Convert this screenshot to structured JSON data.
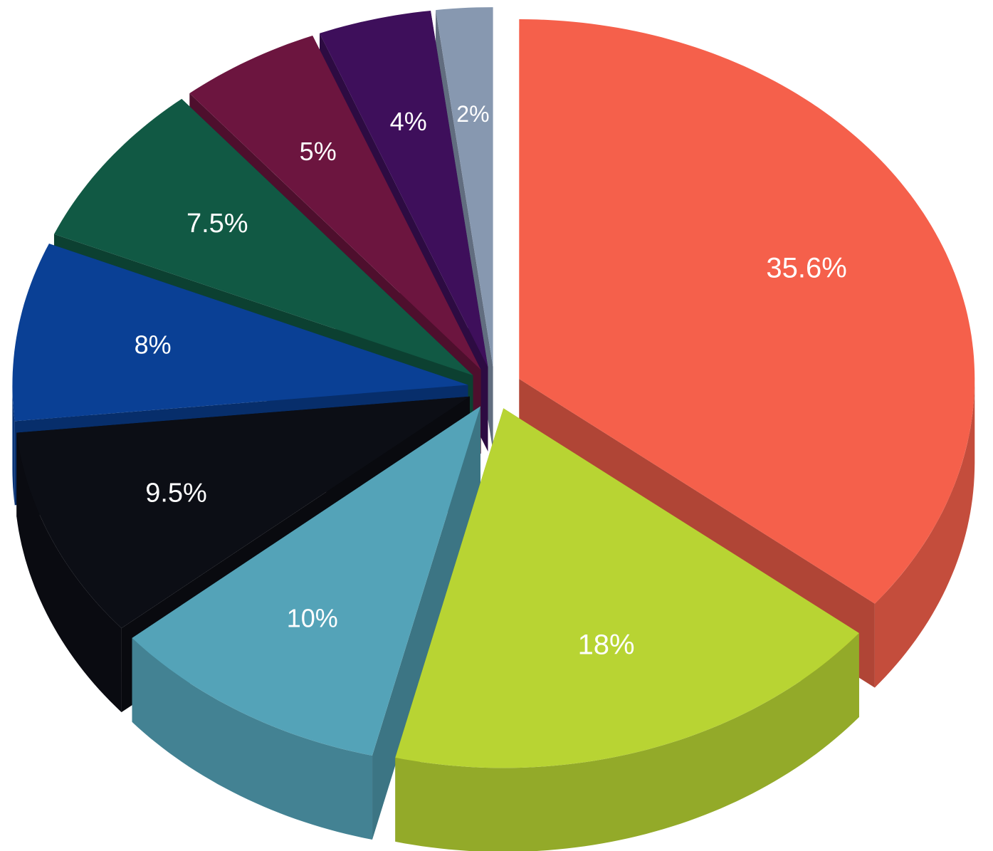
{
  "chart_data": {
    "type": "pie",
    "style": "3d-exploded",
    "slices": [
      {
        "label": "35.6%",
        "value": 35.6,
        "color": "#F5604B"
      },
      {
        "label": "18%",
        "value": 18,
        "color": "#B8D433"
      },
      {
        "label": "10%",
        "value": 10,
        "color": "#54A3B8"
      },
      {
        "label": "9.5%",
        "value": 9.5,
        "color": "#0C0E15"
      },
      {
        "label": "8%",
        "value": 8,
        "color": "#0A4095"
      },
      {
        "label": "7.5%",
        "value": 7.5,
        "color": "#115944"
      },
      {
        "label": "5%",
        "value": 5,
        "color": "#6C153F"
      },
      {
        "label": "4%",
        "value": 4,
        "color": "#3E0F5B"
      },
      {
        "label": "2%",
        "value": 2,
        "color": "#8798B0"
      }
    ]
  }
}
